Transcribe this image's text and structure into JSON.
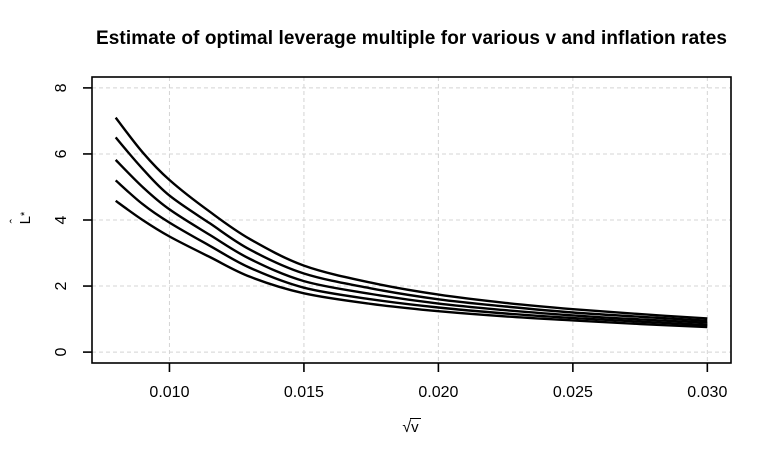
{
  "figure": {
    "background": "#ffffff",
    "foreground": "#000000"
  },
  "chart_data": {
    "type": "line",
    "title": "Estimate of optimal leverage multiple for various v and inflation rates",
    "xlabel": {
      "radical": "√",
      "variable": "v"
    },
    "ylabel": {
      "base": "L",
      "hat": "ˆ",
      "sup": "*"
    },
    "xlim": [
      0.00712,
      0.03088
    ],
    "ylim": [
      -0.33,
      8.33
    ],
    "xticks": {
      "values": [
        0.01,
        0.015,
        0.02,
        0.025,
        0.03
      ],
      "labels": [
        "0.010",
        "0.015",
        "0.020",
        "0.025",
        "0.030"
      ]
    },
    "yticks": {
      "values": [
        0,
        2,
        4,
        6,
        8
      ],
      "labels": [
        "0",
        "2",
        "4",
        "6",
        "8"
      ]
    },
    "grid": {
      "visible": true,
      "style": "dashed",
      "color": "#d4d4d4"
    },
    "box": {
      "visible": true,
      "color": "#000000"
    },
    "line_color": "#000000",
    "line_width": 2.4,
    "legend": "none",
    "x_samples": [
      0.008,
      0.009,
      0.01,
      0.0115,
      0.013,
      0.015,
      0.0175,
      0.02,
      0.0225,
      0.025,
      0.0275,
      0.03
    ],
    "series": [
      {
        "id": "curve-1",
        "values": [
          7.1,
          6.05,
          5.21,
          4.25,
          3.42,
          2.62,
          2.1,
          1.74,
          1.49,
          1.3,
          1.15,
          1.02
        ]
      },
      {
        "id": "curve-2",
        "values": [
          6.5,
          5.55,
          4.74,
          3.9,
          3.1,
          2.38,
          1.93,
          1.6,
          1.38,
          1.2,
          1.07,
          0.95
        ]
      },
      {
        "id": "curve-3",
        "values": [
          5.82,
          5.0,
          4.32,
          3.55,
          2.82,
          2.15,
          1.76,
          1.47,
          1.27,
          1.11,
          0.99,
          0.89
        ]
      },
      {
        "id": "curve-4",
        "values": [
          5.2,
          4.48,
          3.92,
          3.22,
          2.55,
          1.95,
          1.6,
          1.35,
          1.17,
          1.03,
          0.92,
          0.82
        ]
      },
      {
        "id": "curve-5",
        "values": [
          4.58,
          4.0,
          3.5,
          2.88,
          2.28,
          1.78,
          1.46,
          1.24,
          1.08,
          0.96,
          0.85,
          0.76
        ]
      }
    ]
  }
}
